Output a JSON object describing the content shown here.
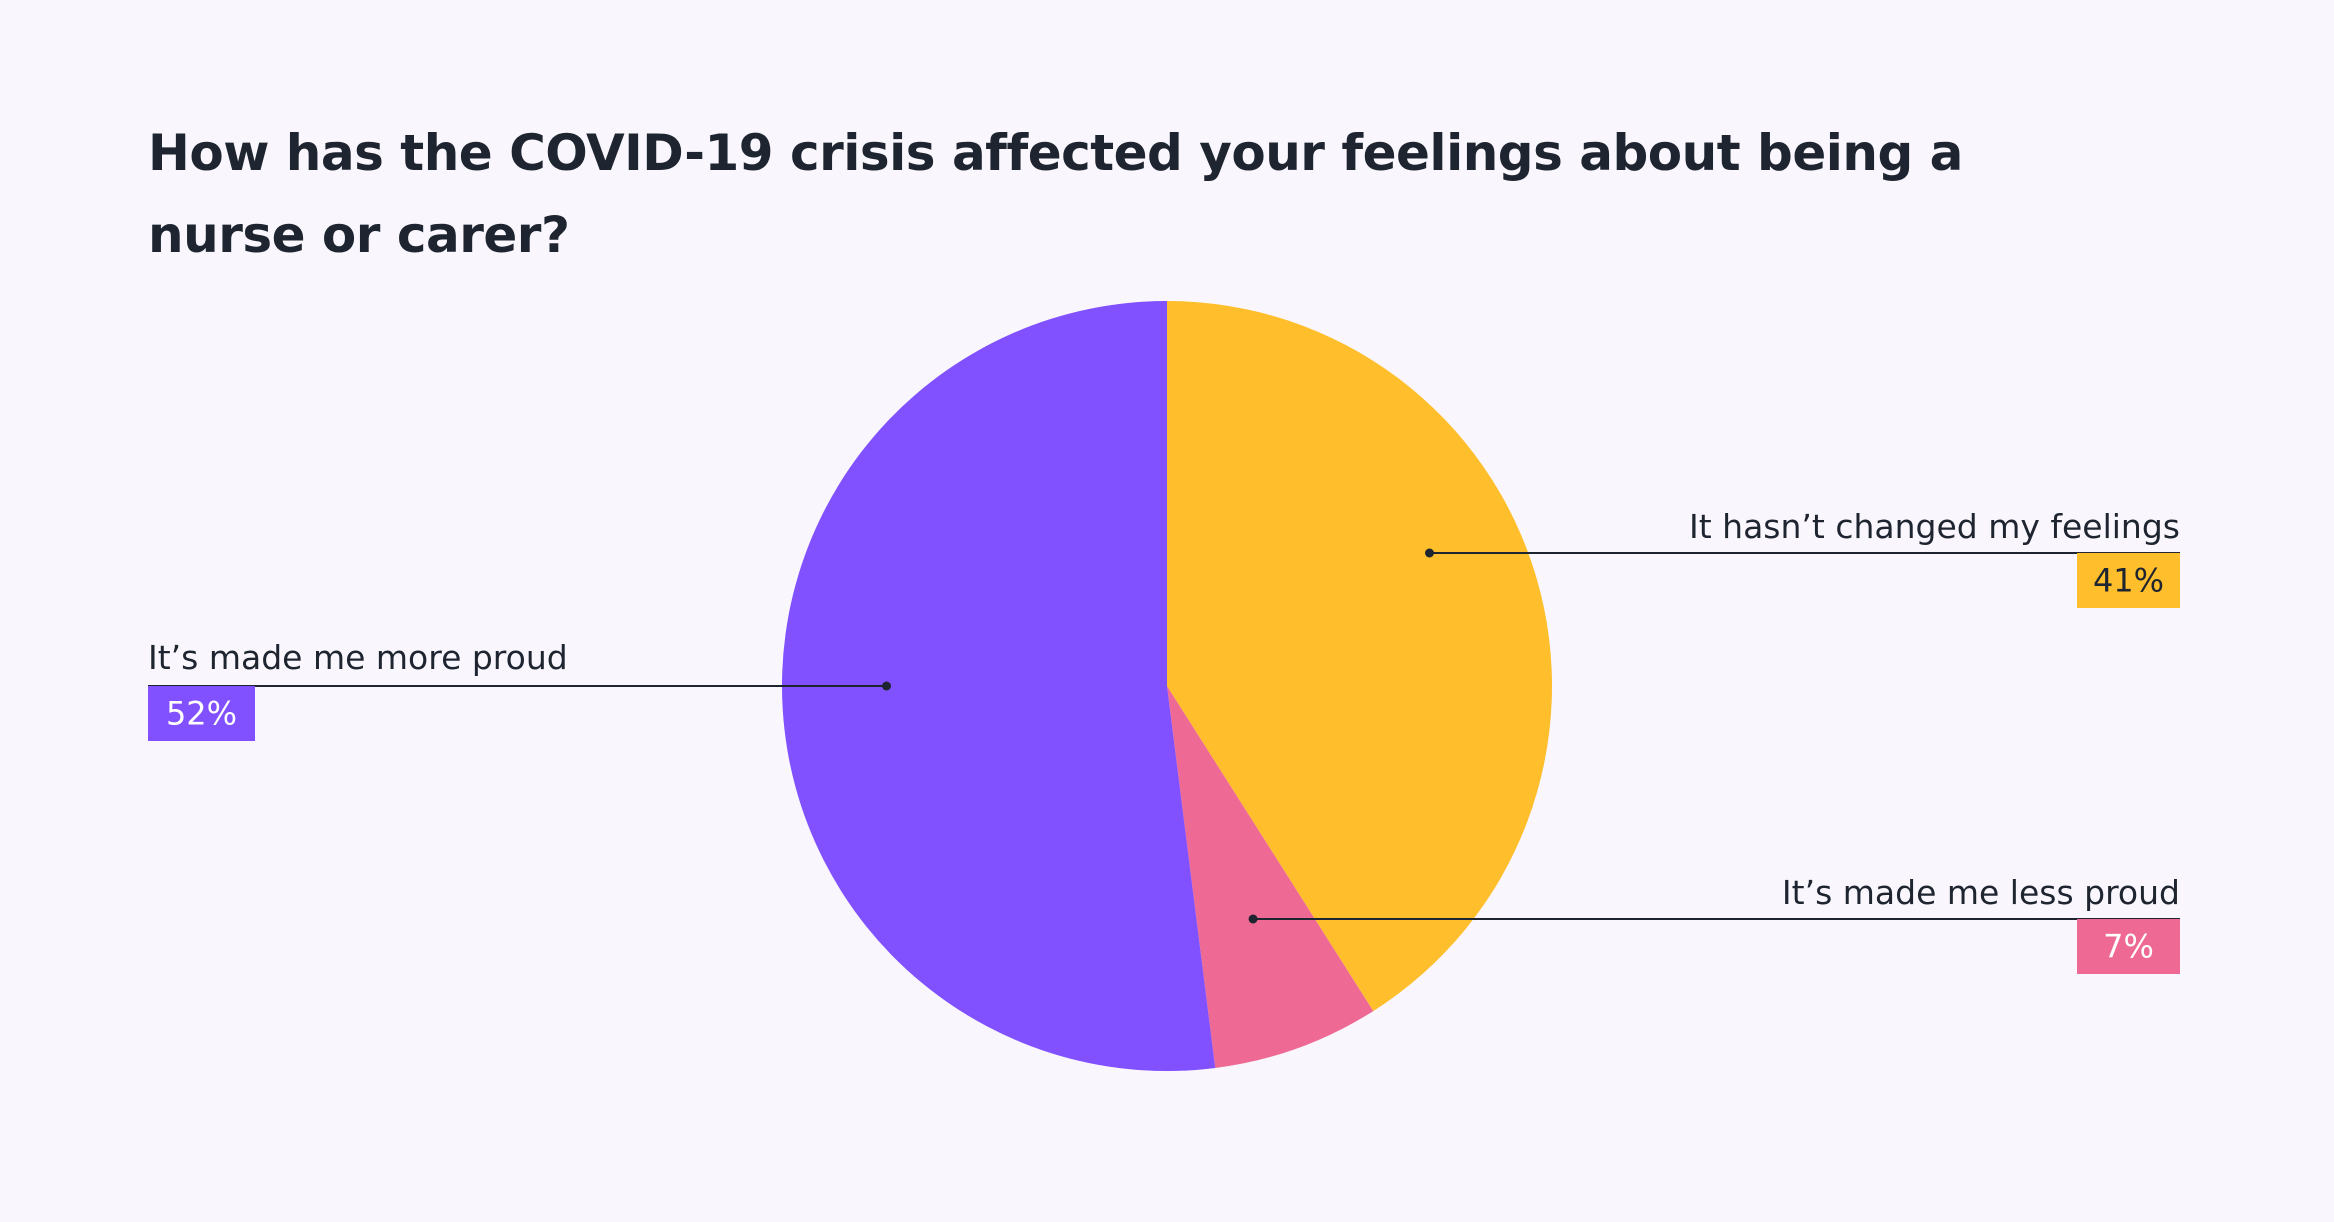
{
  "chart_data": {
    "type": "pie",
    "title": "How has the COVID-19 crisis affected your feelings about being a nurse or carer?",
    "slices": [
      {
        "label": "It hasn’t changed my feelings",
        "value": 41,
        "display": "41%",
        "color": "#ffbe2b",
        "text_color": "#1f2530"
      },
      {
        "label": "It’s made me less proud",
        "value": 7,
        "display": "7%",
        "color": "#ee6a95",
        "text_color": "#ffffff"
      },
      {
        "label": "It’s made me more proud",
        "value": 52,
        "display": "52%",
        "color": "#8150ff",
        "text_color": "#ffffff"
      }
    ]
  },
  "colors": {
    "background": "#f9f7fd",
    "text": "#1f2530",
    "leader_line": "#1f2530"
  }
}
